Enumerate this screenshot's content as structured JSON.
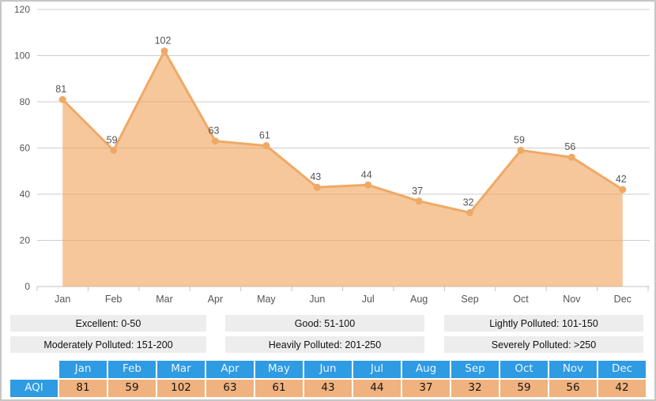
{
  "chart_data": {
    "type": "area",
    "categories": [
      "Jan",
      "Feb",
      "Mar",
      "Apr",
      "May",
      "Jun",
      "Jul",
      "Aug",
      "Sep",
      "Oct",
      "Nov",
      "Dec"
    ],
    "series": [
      {
        "name": "AQI",
        "values": [
          81,
          59,
          102,
          63,
          61,
          43,
          44,
          37,
          32,
          59,
          56,
          42
        ]
      }
    ],
    "title": "",
    "xlabel": "",
    "ylabel": "",
    "ylim": [
      0,
      120
    ],
    "yticks": [
      0,
      20,
      40,
      60,
      80,
      100,
      120
    ],
    "grid": true,
    "point_labels": true,
    "legend_position": "none"
  },
  "colors": {
    "area_fill": "#f0a258",
    "area_fill_opacity": "0.6",
    "line": "#efa966",
    "marker": "#efa966",
    "gridline": "#cccccc",
    "axis_line": "#c4c4c4",
    "axis_label": "#555555",
    "data_label": "#555555",
    "table_header_bg": "#2e9be2",
    "table_value_bg": "#f0b27e",
    "legend_bg": "#ededed"
  },
  "legend": {
    "rows": [
      [
        "Excellent: 0-50",
        "Good: 51-100",
        "Lightly Polluted: 101-150"
      ],
      [
        "Moderately Polluted: 151-200",
        "Heavily Polluted: 201-250",
        "Severely Polluted: >250"
      ]
    ]
  },
  "table": {
    "row_label": "AQI",
    "columns": [
      "Jan",
      "Feb",
      "Mar",
      "Apr",
      "May",
      "Jun",
      "Jul",
      "Aug",
      "Sep",
      "Oct",
      "Nov",
      "Dec"
    ],
    "values": [
      81,
      59,
      102,
      63,
      61,
      43,
      44,
      37,
      32,
      59,
      56,
      42
    ]
  }
}
